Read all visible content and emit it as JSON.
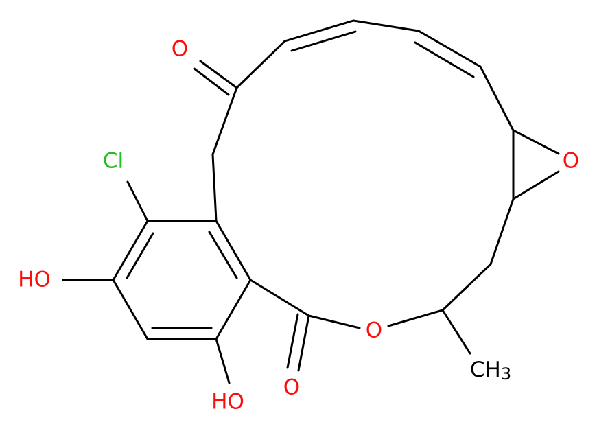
{
  "atoms": [
    {
      "label": "O"
    },
    {
      "label": "Cl"
    },
    {
      "label": "O"
    },
    {
      "label": "HO"
    },
    {
      "label": "HO"
    },
    {
      "label": "O"
    },
    {
      "label": "O"
    },
    {
      "label": "CH",
      "sub": "3"
    }
  ]
}
